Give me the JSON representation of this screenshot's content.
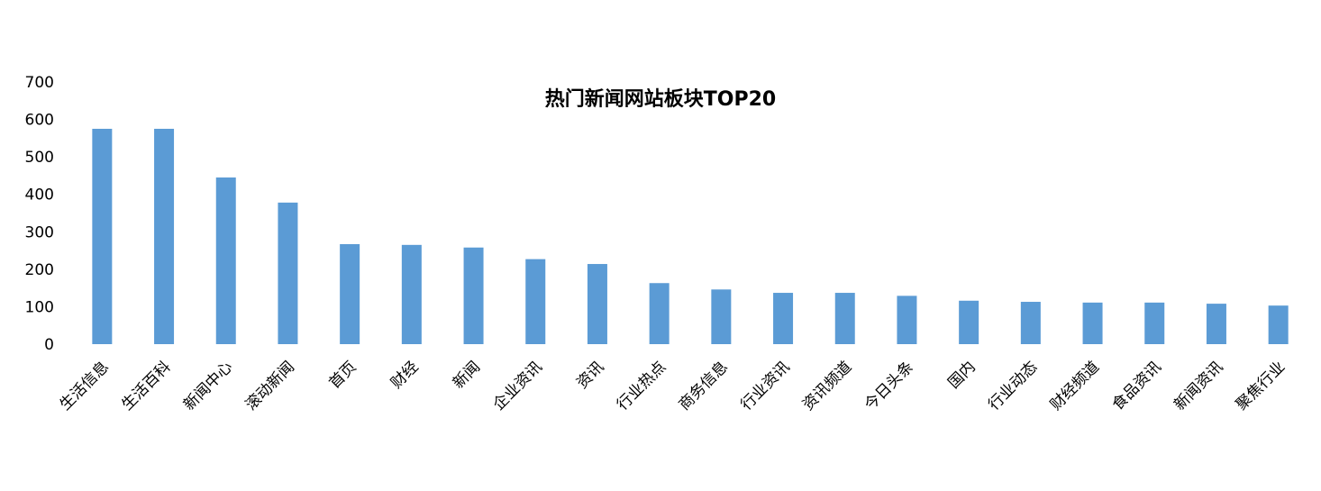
{
  "chart_data": {
    "type": "bar",
    "title": "热门新闻网站板块TOP20",
    "xlabel": "",
    "ylabel": "",
    "ylim": [
      0,
      700
    ],
    "yticks": [
      0,
      100,
      200,
      300,
      400,
      500,
      600,
      700
    ],
    "grid": false,
    "legend": "none",
    "bar_color": "#5b9bd5",
    "categories": [
      "生活信息",
      "生活百科",
      "新闻中心",
      "滚动新闻",
      "首页",
      "财经",
      "新闻",
      "企业资讯",
      "资讯",
      "行业热点",
      "商务信息",
      "行业资讯",
      "资讯频道",
      "今日头条",
      "国内",
      "行业动态",
      "财经频道",
      "食品资讯",
      "新闻资讯",
      "聚焦行业"
    ],
    "values": [
      575,
      575,
      445,
      378,
      267,
      265,
      258,
      227,
      214,
      163,
      146,
      137,
      137,
      129,
      116,
      113,
      111,
      111,
      108,
      103
    ]
  }
}
